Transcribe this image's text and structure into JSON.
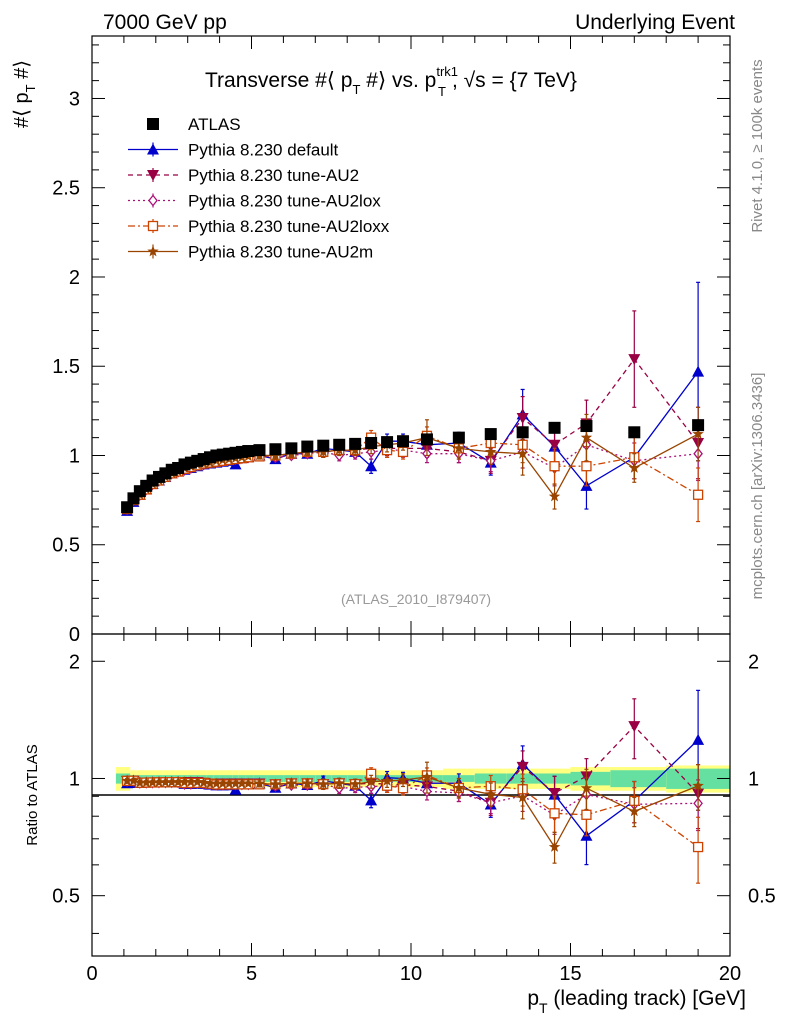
{
  "header": {
    "left": "7000 GeV pp",
    "right": "Underlying Event"
  },
  "side_labels": {
    "rivet": "Rivet 4.1.0, ≥ 100k events",
    "mcplots": "mcplots.cern.ch [arXiv:1306.3436]"
  },
  "chart_data": {
    "type": "scatter",
    "title_parts": {
      "prefix": "Transverse #⟨ p",
      "sub_t": "T",
      "middle": " #⟩ vs. p",
      "sup_trk1": "trk1",
      "sub_t2": "T",
      "sqrt_text": ", √s = {7 TeV}"
    },
    "analysis_label": "(ATLAS_2010_I879407)",
    "ylabel_top": {
      "main": "#⟨ p",
      "sub": "T",
      "tail": " #⟩"
    },
    "ylabel_bottom": "Ratio to ATLAS",
    "xlabel": {
      "p": "p",
      "sub": "T",
      "tail": " (leading track) [GeV]"
    },
    "xlim": [
      0,
      20
    ],
    "ylim_top": [
      0,
      3.35
    ],
    "ylim_ratio": [
      0.35,
      2.35
    ],
    "x_ticks": [
      "0",
      "5",
      "10",
      "15",
      "20"
    ],
    "y_ticks_top": [
      "0",
      "0.5",
      "1",
      "1.5",
      "2",
      "2.5",
      "3"
    ],
    "y_ticks_ratio": [
      "0.5",
      "1",
      "2"
    ],
    "x": [
      1.1,
      1.3,
      1.5,
      1.7,
      1.9,
      2.1,
      2.3,
      2.5,
      2.7,
      2.9,
      3.1,
      3.3,
      3.5,
      3.7,
      3.9,
      4.1,
      4.3,
      4.5,
      4.7,
      4.9,
      5.25,
      5.75,
      6.25,
      6.75,
      7.25,
      7.75,
      8.25,
      8.75,
      9.25,
      9.75,
      10.5,
      11.5,
      12.5,
      13.5,
      14.5,
      15.5,
      17.0,
      19.0
    ],
    "atlas": {
      "name": "ATLAS",
      "values": [
        0.71,
        0.76,
        0.8,
        0.83,
        0.86,
        0.88,
        0.9,
        0.92,
        0.93,
        0.95,
        0.96,
        0.97,
        0.98,
        0.99,
        1.0,
        1.005,
        1.01,
        1.015,
        1.02,
        1.025,
        1.03,
        1.035,
        1.04,
        1.05,
        1.055,
        1.06,
        1.065,
        1.07,
        1.075,
        1.08,
        1.09,
        1.1,
        1.12,
        1.13,
        1.155,
        1.165,
        1.13,
        1.17
      ],
      "color": "#000000"
    },
    "band": {
      "stat_color": "#66e0a0",
      "total_color": "#ffff80",
      "stat_half": [
        0.03,
        0.02,
        0.02,
        0.02,
        0.02,
        0.02,
        0.02,
        0.02,
        0.02,
        0.02,
        0.02,
        0.02,
        0.02,
        0.02,
        0.02,
        0.02,
        0.02,
        0.02,
        0.02,
        0.02,
        0.02,
        0.02,
        0.02,
        0.02,
        0.02,
        0.02,
        0.02,
        0.02,
        0.02,
        0.02,
        0.02,
        0.02,
        0.03,
        0.03,
        0.03,
        0.04,
        0.05,
        0.06
      ],
      "total_half": [
        0.07,
        0.05,
        0.05,
        0.05,
        0.05,
        0.05,
        0.05,
        0.05,
        0.05,
        0.05,
        0.05,
        0.05,
        0.05,
        0.05,
        0.05,
        0.05,
        0.05,
        0.05,
        0.05,
        0.05,
        0.05,
        0.05,
        0.05,
        0.05,
        0.05,
        0.05,
        0.05,
        0.05,
        0.05,
        0.05,
        0.05,
        0.06,
        0.06,
        0.06,
        0.06,
        0.07,
        0.07,
        0.08
      ]
    },
    "series": [
      {
        "name": "Pythia 8.230 default",
        "color": "#0000cc",
        "dash": "none",
        "marker": "triangle-up",
        "values": [
          0.69,
          0.74,
          0.78,
          0.81,
          0.84,
          0.86,
          0.88,
          0.9,
          0.91,
          0.92,
          0.93,
          0.94,
          0.95,
          0.955,
          0.96,
          0.965,
          0.97,
          0.95,
          0.985,
          0.99,
          1.0,
          0.98,
          1.01,
          1.01,
          1.04,
          1.03,
          1.02,
          0.94,
          1.08,
          1.08,
          1.06,
          1.07,
          0.96,
          1.23,
          1.05,
          0.83,
          0.99,
          1.47
        ],
        "errors": [
          0.01,
          0.01,
          0.01,
          0.01,
          0.01,
          0.01,
          0.01,
          0.01,
          0.01,
          0.01,
          0.01,
          0.01,
          0.01,
          0.01,
          0.01,
          0.01,
          0.01,
          0.01,
          0.01,
          0.01,
          0.02,
          0.02,
          0.02,
          0.02,
          0.03,
          0.03,
          0.03,
          0.04,
          0.04,
          0.04,
          0.05,
          0.06,
          0.07,
          0.14,
          0.12,
          0.13,
          0.12,
          0.5
        ]
      },
      {
        "name": "Pythia 8.230 tune-AU2",
        "color": "#990044",
        "dash": "5,4",
        "marker": "triangle-down",
        "values": [
          0.7,
          0.75,
          0.78,
          0.81,
          0.84,
          0.86,
          0.88,
          0.9,
          0.91,
          0.93,
          0.94,
          0.95,
          0.955,
          0.96,
          0.97,
          0.975,
          0.98,
          0.985,
          0.99,
          0.995,
          1.0,
          1.0,
          1.01,
          1.02,
          1.02,
          1.03,
          1.03,
          1.04,
          1.04,
          1.04,
          1.04,
          1.02,
          0.97,
          1.21,
          1.06,
          1.18,
          1.54,
          1.07
        ],
        "errors": [
          0.01,
          0.01,
          0.01,
          0.01,
          0.01,
          0.01,
          0.01,
          0.01,
          0.01,
          0.01,
          0.01,
          0.01,
          0.01,
          0.01,
          0.01,
          0.01,
          0.01,
          0.01,
          0.01,
          0.01,
          0.02,
          0.02,
          0.02,
          0.02,
          0.03,
          0.03,
          0.03,
          0.04,
          0.04,
          0.04,
          0.05,
          0.06,
          0.07,
          0.12,
          0.11,
          0.13,
          0.27,
          0.2
        ]
      },
      {
        "name": "Pythia 8.230 tune-AU2lox",
        "color": "#aa1177",
        "dash": "2,3",
        "marker": "diamond-open",
        "values": [
          0.7,
          0.75,
          0.78,
          0.81,
          0.84,
          0.86,
          0.88,
          0.9,
          0.91,
          0.92,
          0.93,
          0.945,
          0.95,
          0.96,
          0.965,
          0.97,
          0.975,
          0.98,
          0.985,
          0.99,
          1.0,
          0.99,
          1.0,
          1.01,
          1.02,
          1.0,
          1.01,
          1.02,
          1.03,
          1.03,
          1.01,
          1.01,
          0.97,
          1.02,
          0.93,
          1.06,
          0.97,
          1.01
        ],
        "errors": [
          0.01,
          0.01,
          0.01,
          0.01,
          0.01,
          0.01,
          0.01,
          0.01,
          0.01,
          0.01,
          0.01,
          0.01,
          0.01,
          0.01,
          0.01,
          0.01,
          0.01,
          0.01,
          0.01,
          0.01,
          0.02,
          0.02,
          0.02,
          0.02,
          0.03,
          0.03,
          0.03,
          0.04,
          0.04,
          0.04,
          0.05,
          0.05,
          0.06,
          0.09,
          0.1,
          0.11,
          0.1,
          0.15
        ]
      },
      {
        "name": "Pythia 8.230 tune-AU2loxx",
        "color": "#cc4400",
        "dash": "7,3,2,3",
        "marker": "square-open",
        "values": [
          0.7,
          0.75,
          0.78,
          0.81,
          0.84,
          0.86,
          0.88,
          0.9,
          0.91,
          0.925,
          0.935,
          0.945,
          0.955,
          0.96,
          0.965,
          0.97,
          0.975,
          0.98,
          0.985,
          0.99,
          0.995,
          1.0,
          1.01,
          1.02,
          1.02,
          1.03,
          1.03,
          1.1,
          1.03,
          1.02,
          1.11,
          1.04,
          1.07,
          1.06,
          0.94,
          0.94,
          0.99,
          0.78
        ],
        "errors": [
          0.01,
          0.01,
          0.01,
          0.01,
          0.01,
          0.01,
          0.01,
          0.01,
          0.01,
          0.01,
          0.01,
          0.01,
          0.01,
          0.01,
          0.01,
          0.01,
          0.01,
          0.01,
          0.01,
          0.01,
          0.02,
          0.02,
          0.02,
          0.02,
          0.03,
          0.03,
          0.03,
          0.04,
          0.04,
          0.04,
          0.05,
          0.06,
          0.07,
          0.1,
          0.1,
          0.11,
          0.12,
          0.15
        ]
      },
      {
        "name": "Pythia 8.230 tune-AU2m",
        "color": "#994400",
        "dash": "none",
        "marker": "star",
        "values": [
          0.7,
          0.75,
          0.78,
          0.81,
          0.84,
          0.86,
          0.88,
          0.9,
          0.91,
          0.93,
          0.94,
          0.95,
          0.955,
          0.96,
          0.97,
          0.975,
          0.98,
          0.985,
          0.99,
          0.995,
          1.0,
          1.0,
          1.01,
          1.02,
          1.02,
          1.03,
          1.03,
          1.05,
          1.06,
          1.07,
          1.1,
          1.04,
          1.02,
          1.01,
          0.77,
          1.1,
          0.93,
          1.12
        ],
        "errors": [
          0.01,
          0.01,
          0.01,
          0.01,
          0.01,
          0.01,
          0.01,
          0.01,
          0.01,
          0.01,
          0.01,
          0.01,
          0.01,
          0.01,
          0.01,
          0.01,
          0.01,
          0.01,
          0.01,
          0.01,
          0.02,
          0.02,
          0.02,
          0.02,
          0.03,
          0.03,
          0.03,
          0.04,
          0.04,
          0.04,
          0.1,
          0.06,
          0.07,
          0.12,
          0.07,
          0.13,
          0.08,
          0.15
        ]
      }
    ]
  }
}
